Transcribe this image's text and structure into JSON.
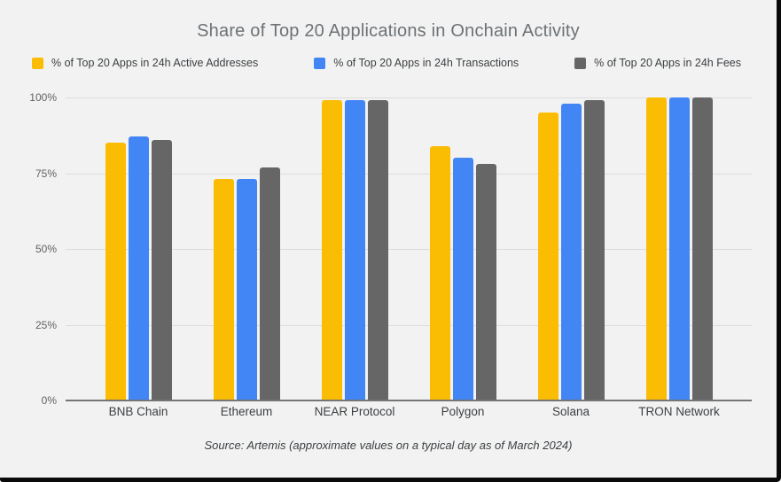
{
  "frame": {
    "background": "#f2f2f2",
    "border_color": "#0a0a0a"
  },
  "chart_data": {
    "type": "bar",
    "title": "Share of Top 20 Applications in Onchain Activity",
    "source_note": "Source: Artemis (approximate values on a typical day as of March 2024)",
    "categories": [
      "BNB Chain",
      "Ethereum",
      "NEAR Protocol",
      "Polygon",
      "Solana",
      "TRON Network"
    ],
    "series": [
      {
        "name": "% of Top 20 Apps in 24h Active Addresses",
        "color": "#FBBC04",
        "values": [
          85,
          73,
          99,
          84,
          95,
          100
        ]
      },
      {
        "name": "% of Top 20 Apps in 24h Transactions",
        "color": "#4285F4",
        "values": [
          87,
          73,
          99,
          80,
          98,
          100
        ]
      },
      {
        "name": "% of Top 20 Apps in 24h Fees",
        "color": "#666666",
        "values": [
          86,
          77,
          99,
          78,
          99,
          100
        ]
      }
    ],
    "y_axis": {
      "min": 0,
      "max": 100,
      "tick_values": [
        0,
        25,
        50,
        75,
        100
      ],
      "tick_labels": [
        "0%",
        "25%",
        "50%",
        "75%",
        "100%"
      ]
    },
    "grid": true,
    "legend_position": "top",
    "gridline_color": "#dcdcdc",
    "baseline_color": "#757575"
  }
}
